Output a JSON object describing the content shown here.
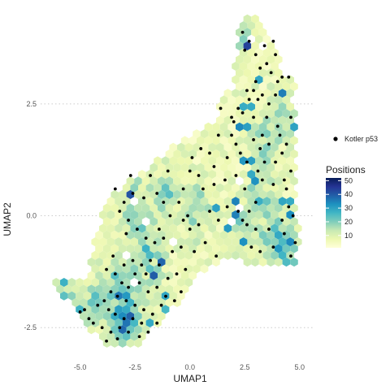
{
  "chart_data": {
    "type": "hexbin-scatter",
    "xlabel": "UMAP1",
    "ylabel": "UMAP2",
    "xlim": [
      -6.8,
      5.6
    ],
    "ylim": [
      -2.95,
      4.55
    ],
    "x_ticks": [
      -5.0,
      -2.5,
      0.0,
      2.5,
      5.0
    ],
    "x_tick_labels": [
      "-5.0",
      "-2.5",
      "0.0",
      "2.5",
      "5.0"
    ],
    "y_ticks": [
      -2.5,
      0.0,
      2.5
    ],
    "y_tick_labels": [
      "-2.5",
      "0.0",
      "2.5"
    ],
    "grid": "horizontal dotted at y ticks",
    "fill_legend": {
      "title": "Positions",
      "range": [
        1,
        52
      ],
      "ticks": [
        10,
        20,
        30,
        40,
        50
      ],
      "tick_labels": [
        "10",
        "20",
        "30",
        "40",
        "50"
      ],
      "colors": [
        "#ffffd9",
        "#edf8b1",
        "#c7e9b4",
        "#7fcdbb",
        "#41b6c4",
        "#1d91c0",
        "#225ea8",
        "#253494",
        "#081d58"
      ]
    },
    "point_legend": {
      "label": "Kotler p53",
      "color": "#000000"
    },
    "point_series": {
      "name": "Kotler p53",
      "points": [
        [
          2.4,
          4.1
        ],
        [
          2.5,
          3.7
        ],
        [
          2.7,
          3.9
        ],
        [
          3.0,
          3.6
        ],
        [
          3.4,
          3.8
        ],
        [
          3.8,
          3.9
        ],
        [
          3.9,
          3.6
        ],
        [
          3.5,
          3.4
        ],
        [
          3.2,
          3.3
        ],
        [
          3.0,
          3.0
        ],
        [
          2.9,
          2.8
        ],
        [
          2.7,
          2.6
        ],
        [
          2.6,
          2.8
        ],
        [
          2.4,
          2.3
        ],
        [
          3.1,
          2.6
        ],
        [
          3.3,
          2.7
        ],
        [
          3.6,
          2.5
        ],
        [
          3.9,
          2.7
        ],
        [
          4.2,
          3.1
        ],
        [
          4.5,
          3.1
        ],
        [
          4.0,
          3.0
        ],
        [
          3.7,
          3.2
        ],
        [
          2.2,
          2.4
        ],
        [
          1.9,
          2.2
        ],
        [
          2.0,
          2.1
        ],
        [
          1.4,
          2.4
        ],
        [
          2.1,
          1.6
        ],
        [
          2.9,
          1.7
        ],
        [
          3.3,
          1.8
        ],
        [
          3.6,
          1.6
        ],
        [
          4.1,
          1.8
        ],
        [
          4.6,
          2.2
        ],
        [
          4.2,
          1.4
        ],
        [
          3.9,
          1.2
        ],
        [
          3.4,
          1.2
        ],
        [
          2.3,
          1.4
        ],
        [
          1.7,
          1.3
        ],
        [
          1.3,
          1.8
        ],
        [
          0.9,
          1.4
        ],
        [
          0.5,
          1.5
        ],
        [
          0.1,
          1.3
        ],
        [
          0.0,
          1.0
        ],
        [
          0.4,
          0.9
        ],
        [
          0.6,
          0.6
        ],
        [
          1.1,
          0.7
        ],
        [
          1.6,
          0.8
        ],
        [
          2.1,
          0.9
        ],
        [
          2.5,
          0.6
        ],
        [
          3.0,
          0.3
        ],
        [
          3.3,
          0.8
        ],
        [
          3.8,
          0.7
        ],
        [
          4.3,
          0.8
        ],
        [
          4.6,
          1.0
        ],
        [
          4.4,
          0.6
        ],
        [
          4.5,
          0.2
        ],
        [
          4.7,
          0.0
        ],
        [
          4.2,
          -0.1
        ],
        [
          3.6,
          -0.3
        ],
        [
          3.0,
          -0.3
        ],
        [
          2.6,
          -0.2
        ],
        [
          2.4,
          -0.1
        ],
        [
          2.2,
          0.1
        ],
        [
          2.8,
          -0.7
        ],
        [
          3.2,
          -0.8
        ],
        [
          3.8,
          -0.7
        ],
        [
          4.3,
          -0.4
        ],
        [
          4.8,
          -0.6
        ],
        [
          4.6,
          -0.9
        ],
        [
          1.7,
          0.2
        ],
        [
          1.3,
          -0.1
        ],
        [
          0.9,
          0.1
        ],
        [
          0.4,
          -0.2
        ],
        [
          0.0,
          -0.3
        ],
        [
          -0.3,
          -0.1
        ],
        [
          -0.5,
          0.3
        ],
        [
          -0.9,
          0.0
        ],
        [
          -1.2,
          0.3
        ],
        [
          -1.5,
          0.5
        ],
        [
          -1.8,
          0.9
        ],
        [
          -2.1,
          0.4
        ],
        [
          -2.6,
          0.5
        ],
        [
          -3.0,
          0.3
        ],
        [
          -3.4,
          0.6
        ],
        [
          -3.2,
          0.1
        ],
        [
          -2.8,
          -0.1
        ],
        [
          -2.4,
          -0.3
        ],
        [
          -2.0,
          -0.5
        ],
        [
          -1.6,
          -0.6
        ],
        [
          -1.2,
          -0.5
        ],
        [
          -0.8,
          -0.8
        ],
        [
          -0.4,
          -0.7
        ],
        [
          0.2,
          -0.8
        ],
        [
          0.7,
          -0.6
        ],
        [
          1.2,
          -0.9
        ],
        [
          -0.2,
          -1.2
        ],
        [
          -0.6,
          -1.3
        ],
        [
          -1.0,
          -1.4
        ],
        [
          -1.4,
          -1.1
        ],
        [
          -1.8,
          -1.0
        ],
        [
          -2.2,
          -1.1
        ],
        [
          -2.6,
          -1.0
        ],
        [
          -3.0,
          -1.1
        ],
        [
          -3.4,
          -1.3
        ],
        [
          -3.8,
          -1.2
        ],
        [
          -3.1,
          -1.5
        ],
        [
          -2.8,
          -1.6
        ],
        [
          -2.3,
          -1.5
        ],
        [
          -1.9,
          -1.7
        ],
        [
          -1.5,
          -1.6
        ],
        [
          -1.1,
          -1.8
        ],
        [
          -0.7,
          -1.9
        ],
        [
          -0.4,
          -1.7
        ],
        [
          -1.3,
          -2.0
        ],
        [
          -1.7,
          -2.2
        ],
        [
          -2.1,
          -2.1
        ],
        [
          -2.5,
          -2.0
        ],
        [
          -2.9,
          -1.9
        ],
        [
          -3.3,
          -1.8
        ],
        [
          -3.6,
          -1.7
        ],
        [
          -3.9,
          -1.9
        ],
        [
          -4.2,
          -2.0
        ],
        [
          -3.7,
          -2.1
        ],
        [
          -3.4,
          -2.2
        ],
        [
          -3.0,
          -2.3
        ],
        [
          -2.6,
          -2.3
        ],
        [
          -2.2,
          -2.4
        ],
        [
          -1.9,
          -2.6
        ],
        [
          -1.5,
          -2.4
        ],
        [
          -3.2,
          -2.5
        ],
        [
          -3.6,
          -2.6
        ],
        [
          -4.0,
          -2.5
        ],
        [
          -4.4,
          -2.4
        ],
        [
          -4.8,
          -2.1
        ],
        [
          -5.0,
          -2.15
        ],
        [
          -4.6,
          -2.3
        ],
        [
          -3.8,
          -2.8
        ],
        [
          -3.3,
          -2.75
        ],
        [
          -2.8,
          -2.6
        ],
        [
          -2.3,
          -2.7
        ],
        [
          -2.5,
          -1.3
        ],
        [
          -2.0,
          -1.3
        ],
        [
          -3.5,
          -0.9
        ],
        [
          -2.7,
          0.9
        ],
        [
          -1.0,
          1.0
        ],
        [
          -0.3,
          0.6
        ],
        [
          1.9,
          1.8
        ],
        [
          2.6,
          1.2
        ],
        [
          3.1,
          1.0
        ],
        [
          4.0,
          2.0
        ],
        [
          3.5,
          2.2
        ],
        [
          2.9,
          2.2
        ],
        [
          3.2,
          1.5
        ],
        [
          4.4,
          1.6
        ],
        [
          2.7,
          0.1
        ],
        [
          1.1,
          1.1
        ],
        [
          -0.1,
          0.0
        ],
        [
          -1.4,
          -0.3
        ],
        [
          -2.9,
          -0.4
        ]
      ]
    }
  }
}
